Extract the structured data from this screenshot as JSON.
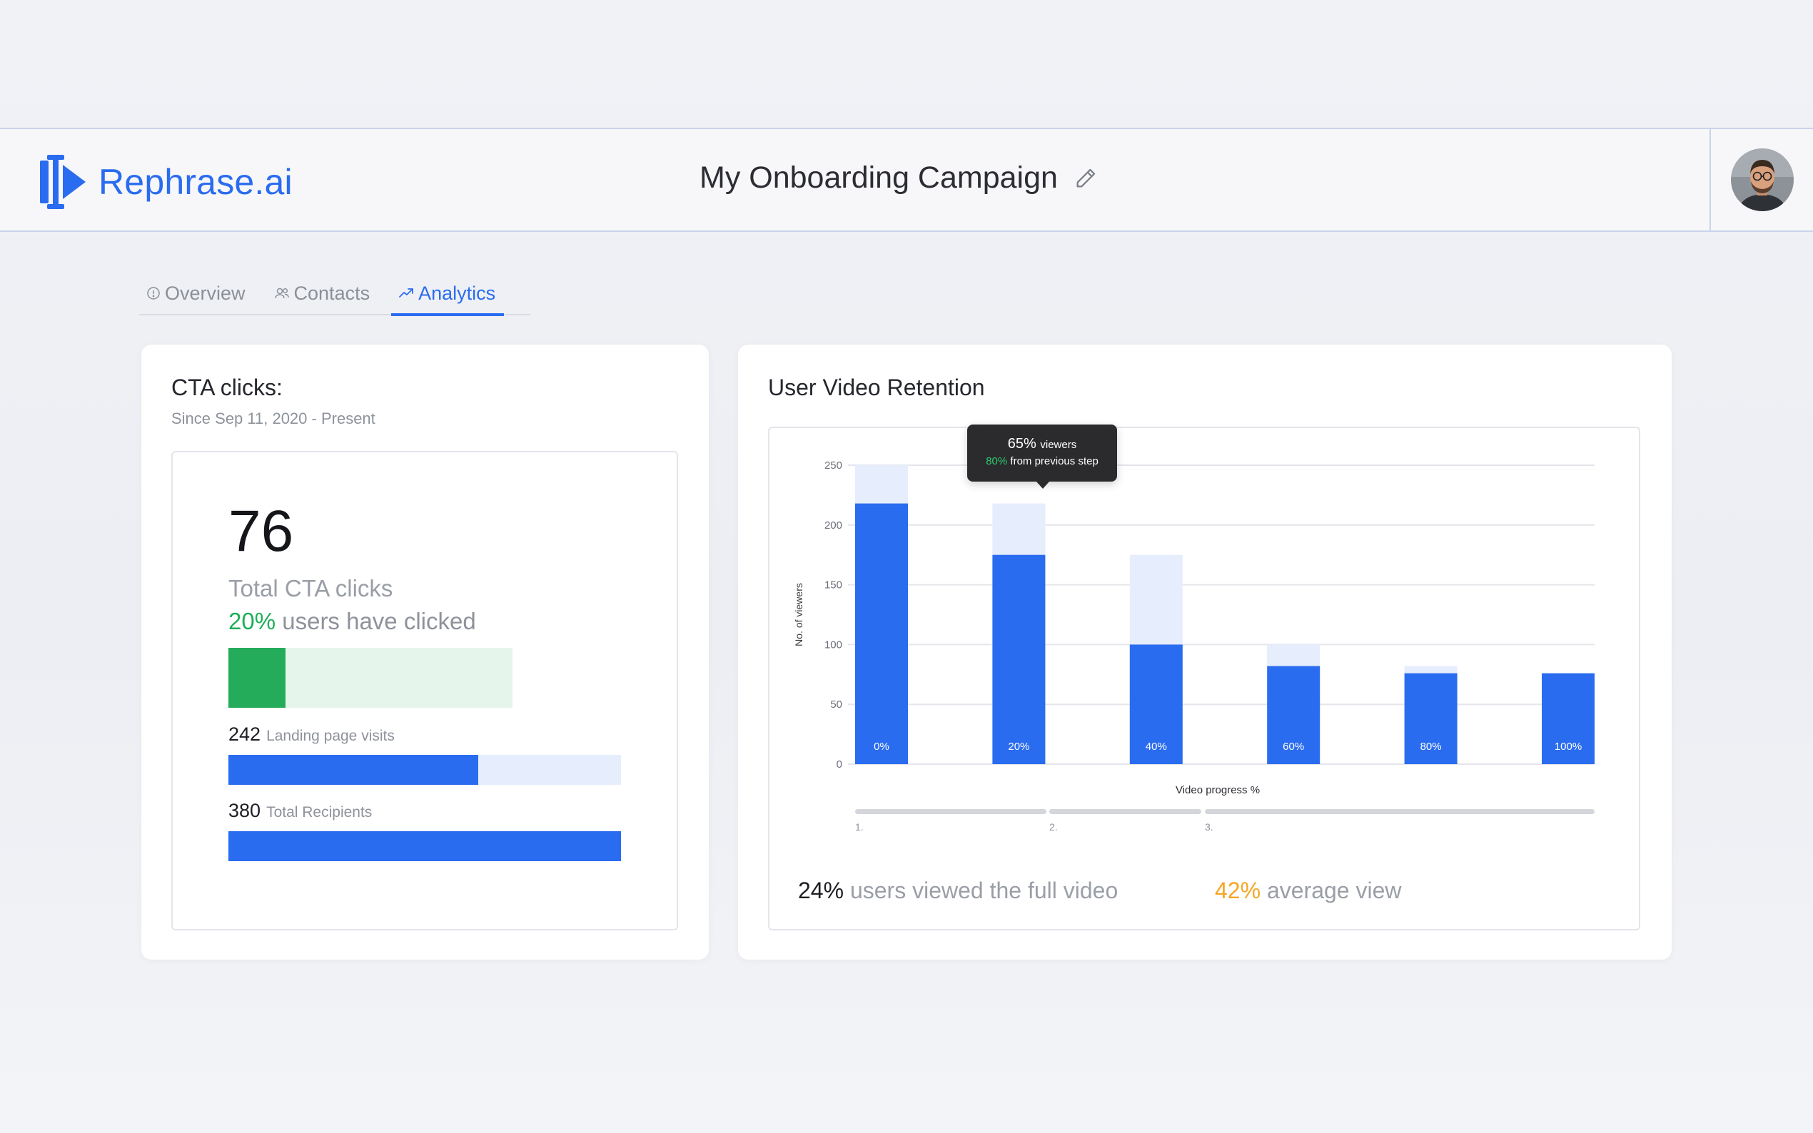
{
  "app": {
    "brand": "Rephrase.ai",
    "campaign_title": "My Onboarding Campaign"
  },
  "tabs": [
    {
      "label": "Overview",
      "icon": "info-icon",
      "active": false
    },
    {
      "label": "Contacts",
      "icon": "users-icon",
      "active": false
    },
    {
      "label": "Analytics",
      "icon": "trending-up-icon",
      "active": true
    }
  ],
  "cta": {
    "title": "CTA clicks:",
    "subtitle": "Since Sep 11, 2020 - Present",
    "total": "76",
    "total_label": "Total CTA clicks",
    "clicked_pct": "20%",
    "clicked_label": "users have clicked",
    "clicked_fraction": 0.2,
    "landing_visits": "242",
    "landing_label": "Landing page visits",
    "landing_fraction": 0.637,
    "recipients": "380",
    "recipients_label": "Total Recipients",
    "recipients_fraction": 1.0
  },
  "retention": {
    "title": "User Video Retention",
    "tooltip": {
      "pct": "65%",
      "pct_label": "viewers",
      "step_pct": "80%",
      "step_label": "from previous step"
    },
    "full_video_pct": "24%",
    "full_video_label": "users viewed the full video",
    "avg_view_pct": "42%",
    "avg_view_label": "average view",
    "step_labels": [
      "1.",
      "2.",
      "3."
    ]
  },
  "colors": {
    "accent": "#2a6cf0",
    "accent_light": "#e6edfd",
    "green": "#25ac5b",
    "orange": "#f5a623"
  },
  "chart_data": {
    "type": "bar",
    "title": "User Video Retention",
    "xlabel": "Video progress %",
    "ylabel": "No. of viewers",
    "ylim": [
      0,
      250
    ],
    "yticks": [
      0,
      50,
      100,
      150,
      200,
      250
    ],
    "categories": [
      "0%",
      "20%",
      "40%",
      "60%",
      "80%",
      "100%"
    ],
    "series": [
      {
        "name": "Viewers",
        "values": [
          218,
          175,
          100,
          82,
          76,
          76
        ]
      },
      {
        "name": "Previous step",
        "values": [
          250,
          218,
          175,
          100,
          82,
          76
        ]
      }
    ]
  }
}
